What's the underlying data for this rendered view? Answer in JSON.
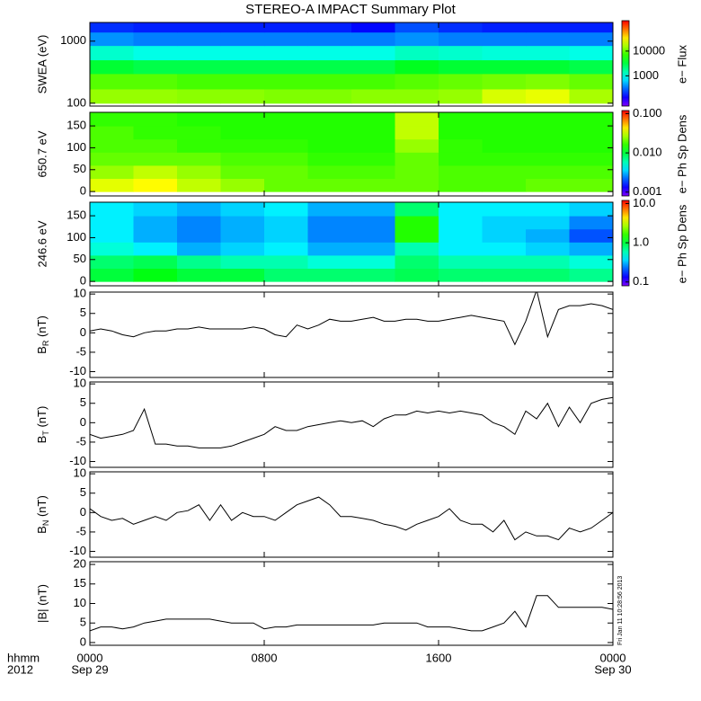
{
  "title": "STEREO-A IMPACT Summary Plot",
  "timestamp": "Fri Jan 11 10:28:56 2013",
  "xaxis": {
    "xlim": [
      0,
      24
    ],
    "ticks": [
      {
        "value": 0,
        "label": "0000"
      },
      {
        "value": 8,
        "label": "0800"
      },
      {
        "value": 16,
        "label": "1600"
      },
      {
        "value": 24,
        "label": "0000"
      }
    ],
    "date_labels": [
      {
        "value": 0,
        "label": "Sep 29"
      },
      {
        "value": 24,
        "label": "Sep 30"
      }
    ],
    "unit_label": "hhmm",
    "year_label": "2012"
  },
  "times": [
    0,
    0.5,
    1,
    1.5,
    2,
    2.5,
    3,
    3.5,
    4,
    4.5,
    5,
    5.5,
    6,
    6.5,
    7,
    7.5,
    8,
    8.5,
    9,
    9.5,
    10,
    10.5,
    11,
    11.5,
    12,
    12.5,
    13,
    13.5,
    14,
    14.5,
    15,
    15.5,
    16,
    16.5,
    17,
    17.5,
    18,
    18.5,
    19,
    19.5,
    20,
    20.5,
    21,
    21.5,
    22,
    22.5,
    23,
    23.5,
    24
  ],
  "chart_data": [
    {
      "type": "heatmap",
      "ylabel": "SWEA (eV)",
      "ylog": true,
      "ylim": [
        90,
        2000
      ],
      "yticks": [
        100,
        1000
      ],
      "xbins": [
        0,
        2,
        4,
        6,
        8,
        10,
        12,
        14,
        16,
        18,
        20,
        22,
        24
      ],
      "ybins": [
        100,
        170,
        300,
        500,
        850,
        1400,
        2000
      ],
      "z": [
        [
          14000,
          14000,
          13000,
          13000,
          12000,
          12000,
          13000,
          13000,
          14000,
          22000,
          25000,
          16000
        ],
        [
          9000,
          9000,
          8000,
          8000,
          8000,
          8000,
          8000,
          9000,
          10000,
          11000,
          12000,
          10000
        ],
        [
          3500,
          3000,
          3000,
          3000,
          3000,
          3000,
          3000,
          4000,
          3500,
          3500,
          3500,
          3000
        ],
        [
          1200,
          1000,
          1000,
          1000,
          1000,
          1000,
          1000,
          1300,
          1200,
          1100,
          1100,
          1000
        ],
        [
          400,
          350,
          350,
          350,
          350,
          350,
          350,
          400,
          350,
          350,
          350,
          350
        ],
        [
          200,
          180,
          180,
          180,
          180,
          180,
          150,
          250,
          200,
          180,
          180,
          180
        ]
      ],
      "zlog": true,
      "zlim": [
        60,
        170000
      ],
      "zticks": [
        1000,
        10000
      ],
      "zlabel": "e− Flux"
    },
    {
      "type": "heatmap",
      "ylabel": "650.7 eV",
      "ylim": [
        -10,
        181
      ],
      "yticks": [
        0,
        50,
        100,
        150
      ],
      "xbins": [
        0,
        2,
        4,
        6,
        8,
        10,
        12,
        14,
        16,
        18,
        20,
        22,
        24
      ],
      "ybins": [
        0,
        30,
        60,
        90,
        120,
        150,
        180
      ],
      "z": [
        [
          0.035,
          0.04,
          0.03,
          0.025,
          0.02,
          0.02,
          0.02,
          0.02,
          0.018,
          0.018,
          0.02,
          0.02
        ],
        [
          0.025,
          0.03,
          0.025,
          0.02,
          0.02,
          0.018,
          0.018,
          0.02,
          0.018,
          0.018,
          0.018,
          0.018
        ],
        [
          0.02,
          0.02,
          0.02,
          0.018,
          0.018,
          0.016,
          0.016,
          0.02,
          0.016,
          0.016,
          0.016,
          0.016
        ],
        [
          0.018,
          0.018,
          0.016,
          0.016,
          0.016,
          0.015,
          0.015,
          0.025,
          0.016,
          0.015,
          0.015,
          0.015
        ],
        [
          0.018,
          0.016,
          0.016,
          0.015,
          0.015,
          0.015,
          0.015,
          0.03,
          0.015,
          0.015,
          0.015,
          0.015
        ],
        [
          0.016,
          0.016,
          0.015,
          0.015,
          0.015,
          0.015,
          0.015,
          0.03,
          0.015,
          0.015,
          0.015,
          0.015
        ]
      ],
      "zlog": true,
      "zlim": [
        0.0008,
        0.12
      ],
      "zticks": [
        0.001,
        {
          "value": 0.01,
          "label": "0.010"
        },
        {
          "value": 0.1,
          "label": "0.100"
        }
      ],
      "zlabel": "e− Ph Sp Dens"
    },
    {
      "type": "heatmap",
      "ylabel": "246.6 eV",
      "ylim": [
        -10,
        181
      ],
      "yticks": [
        0,
        50,
        100,
        150
      ],
      "xbins": [
        0,
        2,
        4,
        6,
        8,
        10,
        12,
        14,
        16,
        18,
        20,
        22,
        24
      ],
      "ybins": [
        0,
        30,
        60,
        90,
        120,
        150,
        180
      ],
      "z": [
        [
          1.0,
          1.2,
          1.0,
          1.0,
          0.8,
          0.8,
          0.8,
          0.9,
          0.8,
          0.8,
          0.8,
          0.7
        ],
        [
          0.8,
          0.9,
          0.7,
          0.6,
          0.6,
          0.5,
          0.5,
          0.8,
          0.6,
          0.6,
          0.6,
          0.5
        ],
        [
          0.5,
          0.4,
          0.3,
          0.35,
          0.4,
          0.3,
          0.3,
          0.6,
          0.4,
          0.4,
          0.35,
          0.3
        ],
        [
          0.4,
          0.3,
          0.25,
          0.3,
          0.35,
          0.25,
          0.25,
          1.5,
          0.4,
          0.35,
          0.3,
          0.2
        ],
        [
          0.4,
          0.3,
          0.25,
          0.3,
          0.35,
          0.25,
          0.25,
          1.5,
          0.4,
          0.35,
          0.35,
          0.25
        ],
        [
          0.4,
          0.35,
          0.3,
          0.35,
          0.4,
          0.3,
          0.3,
          0.8,
          0.4,
          0.4,
          0.4,
          0.35
        ]
      ],
      "zlog": true,
      "zlim": [
        0.08,
        12
      ],
      "zticks": [
        0.1,
        {
          "value": 1,
          "label": "1.0"
        },
        {
          "value": 10,
          "label": "10.0"
        }
      ],
      "zlabel": "e− Ph Sp Dens"
    },
    {
      "type": "line",
      "ylabel": {
        "main": "B",
        "sub": "R",
        "unit": " (nT)"
      },
      "ylim": [
        -11.5,
        10.5
      ],
      "yticks": [
        -10,
        -5,
        0,
        5,
        10
      ],
      "color": "#000000",
      "values": [
        0.5,
        1,
        0.5,
        -0.5,
        -1,
        0,
        0.5,
        0.5,
        1,
        1,
        1.5,
        1,
        1,
        1,
        1,
        1.5,
        1,
        -0.5,
        -1,
        2,
        1,
        2,
        3.5,
        3,
        3,
        3.5,
        4,
        3,
        3,
        3.5,
        3.5,
        3,
        3,
        3.5,
        4,
        4.5,
        4,
        3.5,
        3,
        -3,
        3,
        11,
        -1,
        6,
        7,
        7,
        7.5,
        7,
        6
      ]
    },
    {
      "type": "line",
      "ylabel": {
        "main": "B",
        "sub": "T",
        "unit": " (nT)"
      },
      "ylim": [
        -11.5,
        10.5
      ],
      "yticks": [
        -10,
        -5,
        0,
        5,
        10
      ],
      "color": "#000000",
      "values": [
        -3,
        -4,
        -3.5,
        -3,
        -2,
        3.5,
        -5.5,
        -5.5,
        -6,
        -6,
        -6.5,
        -6.5,
        -6.5,
        -6,
        -5,
        -4,
        -3,
        -1,
        -2,
        -2,
        -1,
        -0.5,
        0,
        0.5,
        0,
        0.5,
        -1,
        1,
        2,
        2,
        3,
        2.5,
        3,
        2.5,
        3,
        2.5,
        2,
        0,
        -1,
        -3,
        3,
        1,
        5,
        -1,
        4,
        0,
        5,
        6,
        6.5
      ]
    },
    {
      "type": "line",
      "ylabel": {
        "main": "B",
        "sub": "N",
        "unit": " (nT)"
      },
      "ylim": [
        -11.5,
        10.5
      ],
      "yticks": [
        -10,
        -5,
        0,
        5,
        10
      ],
      "color": "#000000",
      "values": [
        1,
        -1,
        -2,
        -1.5,
        -3,
        -2,
        -1,
        -2,
        0,
        0.5,
        2,
        -2,
        2,
        -2,
        0,
        -1,
        -1,
        -2,
        0,
        2,
        3,
        4,
        2,
        -1,
        -1,
        -1.5,
        -2,
        -3,
        -3.5,
        -4.5,
        -3,
        -2,
        -1,
        1,
        -2,
        -3,
        -3,
        -5,
        -2,
        -7,
        -5,
        -6,
        -6,
        -7,
        -4,
        -5,
        -4,
        -2,
        0
      ]
    },
    {
      "type": "line",
      "ylabel": "|B| (nT)",
      "ylim": [
        -0.7,
        20.7
      ],
      "yticks": [
        0,
        5,
        10,
        15,
        20
      ],
      "color": "#000000",
      "values": [
        3,
        4,
        4,
        3.5,
        4,
        5,
        5.5,
        6,
        6,
        6,
        6,
        6,
        5.5,
        5,
        5,
        5,
        3.5,
        4,
        4,
        4.5,
        4.5,
        4.5,
        4.5,
        4.5,
        4.5,
        4.5,
        4.5,
        5,
        5,
        5,
        5,
        4,
        4,
        4,
        3.5,
        3,
        3,
        4,
        5,
        8,
        4,
        12,
        12,
        9,
        9,
        9,
        9,
        9,
        8.5
      ]
    }
  ]
}
